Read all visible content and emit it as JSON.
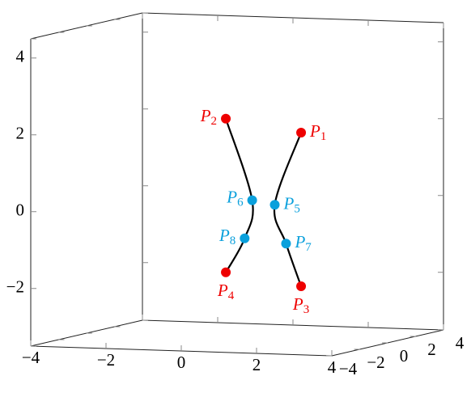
{
  "chart_data": {
    "type": "scatter3d",
    "xlim": [
      -4,
      4
    ],
    "ylim": [
      -4,
      4
    ],
    "zlim": [
      -3.5,
      4.5
    ],
    "xticks": [
      {
        "value": -4,
        "label": "−4"
      },
      {
        "value": -2,
        "label": "−2"
      },
      0,
      2,
      4
    ],
    "yticks": [
      {
        "value": -4,
        "label": "−4"
      },
      {
        "value": -2,
        "label": "−2"
      },
      0,
      2,
      4
    ],
    "zticks": [
      {
        "value": -2,
        "label": "−2"
      },
      0,
      2,
      4
    ],
    "grid": false,
    "curves": [
      {
        "color": "#000000",
        "x": [
          -0.3,
          0.4,
          0.2,
          -0.3
        ],
        "y": [
          0,
          0,
          0,
          0
        ],
        "z": [
          2.2,
          0.1,
          -0.9,
          -1.8
        ]
      },
      {
        "color": "#000000",
        "x": [
          1.7,
          1.0,
          1.3,
          1.7
        ],
        "y": [
          0,
          0,
          0,
          0
        ],
        "z": [
          1.9,
          0.0,
          -1.0,
          -2.1
        ]
      }
    ],
    "points": [
      {
        "label": "P1",
        "x": 1.7,
        "y": 0,
        "z": 1.9,
        "color": "#ee0000"
      },
      {
        "label": "P2",
        "x": -0.3,
        "y": 0,
        "z": 2.2,
        "color": "#ee0000"
      },
      {
        "label": "P3",
        "x": 1.7,
        "y": 0,
        "z": -2.1,
        "color": "#ee0000"
      },
      {
        "label": "P4",
        "x": -0.3,
        "y": 0,
        "z": -1.8,
        "color": "#ee0000"
      },
      {
        "label": "P5",
        "x": 1.0,
        "y": 0,
        "z": 0.0,
        "color": "#0aa0dc"
      },
      {
        "label": "P6",
        "x": 0.4,
        "y": 0,
        "z": 0.1,
        "color": "#0aa0dc"
      },
      {
        "label": "P7",
        "x": 1.3,
        "y": 0,
        "z": -1.0,
        "color": "#0aa0dc"
      },
      {
        "label": "P8",
        "x": 0.2,
        "y": 0,
        "z": -0.9,
        "color": "#0aa0dc"
      }
    ]
  }
}
